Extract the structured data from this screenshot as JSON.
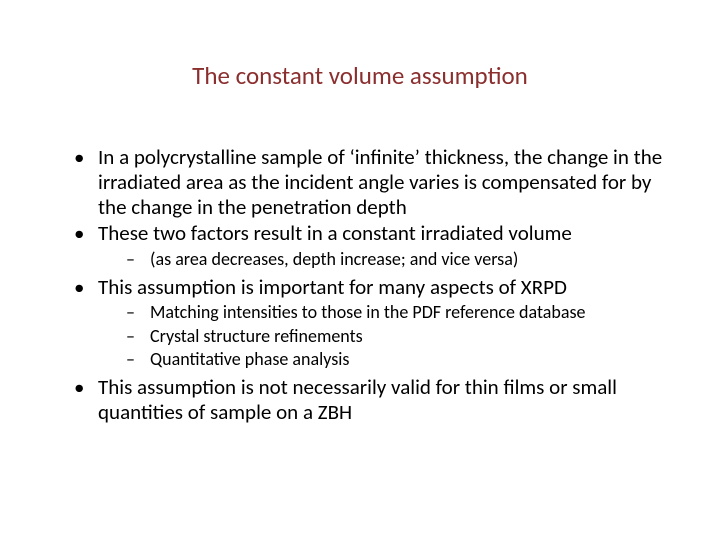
{
  "slide": {
    "title": "The constant volume assumption",
    "title_color": "#8b2e2e",
    "title_fontsize": 25,
    "body_color": "#000000",
    "body_fontsize_l1": 21,
    "body_fontsize_l2": 18,
    "background_color": "#ffffff",
    "bullets": {
      "b1": "In a polycrystalline sample of ‘infinite’ thickness, the change in the irradiated area as the incident angle varies is compensated for by the change in the penetration depth",
      "b2": "These two factors result in a constant irradiated volume",
      "b2_sub": {
        "s1": "(as area decreases, depth increase; and vice versa)"
      },
      "b3": "This assumption is important for many aspects of XRPD",
      "b3_sub": {
        "s1": "Matching intensities to those in the PDF reference database",
        "s2": "Crystal structure refinements",
        "s3": "Quantitative phase analysis"
      },
      "b4": "This assumption is not necessarily valid for thin films or small quantities of sample on a ZBH"
    }
  }
}
